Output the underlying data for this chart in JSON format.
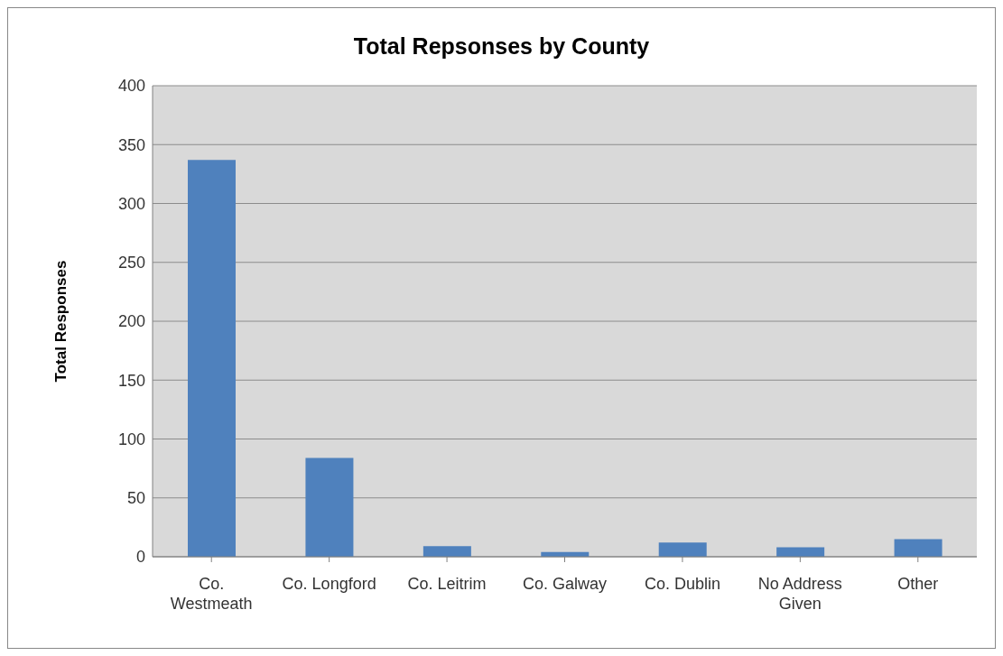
{
  "chart_data": {
    "type": "bar",
    "title": "Total Repsonses by County",
    "ylabel": "Total Responses",
    "categories": [
      "Co. Westmeath",
      "Co. Longford",
      "Co. Leitrim",
      "Co. Galway",
      "Co. Dublin",
      "No Address Given",
      "Other"
    ],
    "values": [
      337,
      84,
      9,
      4,
      12,
      8,
      15
    ],
    "color": "#4f81bd",
    "ylim": [
      0,
      400
    ],
    "yticks": [
      0,
      50,
      100,
      150,
      200,
      250,
      300,
      350,
      400
    ],
    "grid": "y"
  }
}
